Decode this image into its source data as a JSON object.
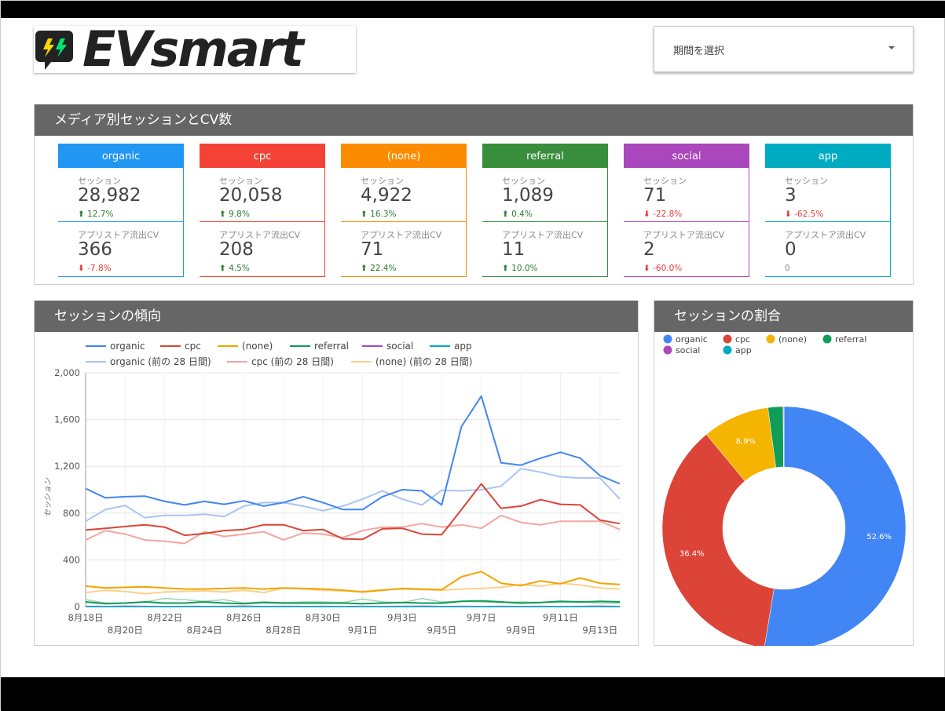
{
  "header": {
    "brand": "EVsmart",
    "period_placeholder": "期間を選択"
  },
  "media_panel": {
    "title": "メディア別セッションとCV数"
  },
  "cards": [
    {
      "name": "organic",
      "color": "#2196f3",
      "session_label": "セッション",
      "sessions": "28,982",
      "session_change": "12.7%",
      "session_dir": "up",
      "cv_label": "アプリストア流出CV",
      "cv": "366",
      "cv_change": "-7.8%",
      "cv_dir": "down"
    },
    {
      "name": "cpc",
      "color": "#f44336",
      "session_label": "セッション",
      "sessions": "20,058",
      "session_change": "9.8%",
      "session_dir": "up",
      "cv_label": "アプリストア流出CV",
      "cv": "208",
      "cv_change": "4.5%",
      "cv_dir": "up"
    },
    {
      "name": "(none)",
      "color": "#fb8c00",
      "session_label": "セッション",
      "sessions": "4,922",
      "session_change": "16.3%",
      "session_dir": "up",
      "cv_label": "アプリストア流出CV",
      "cv": "71",
      "cv_change": "22.4%",
      "cv_dir": "up"
    },
    {
      "name": "referral",
      "color": "#388e3c",
      "session_label": "セッション",
      "sessions": "1,089",
      "session_change": "0.4%",
      "session_dir": "up",
      "cv_label": "アプリストア流出CV",
      "cv": "11",
      "cv_change": "10.0%",
      "cv_dir": "up"
    },
    {
      "name": "social",
      "color": "#ab47bc",
      "session_label": "セッション",
      "sessions": "71",
      "session_change": "-22.8%",
      "session_dir": "down",
      "cv_label": "アプリストア流出CV",
      "cv": "2",
      "cv_change": "-60.0%",
      "cv_dir": "down"
    },
    {
      "name": "app",
      "color": "#00acc1",
      "session_label": "セッション",
      "sessions": "3",
      "session_change": "-62.5%",
      "session_dir": "down",
      "cv_label": "アプリストア流出CV",
      "cv": "0",
      "cv_change": "0",
      "cv_dir": "flat"
    }
  ],
  "trend_panel": {
    "title": "セッションの傾向"
  },
  "share_panel": {
    "title": "セッションの割合"
  },
  "colors": {
    "organic": "#4285f4",
    "cpc": "#db4437",
    "none": "#f4a300",
    "referral": "#0f9d58",
    "social": "#ab47bc",
    "app": "#00acc1"
  },
  "chart_data": [
    {
      "type": "line",
      "title": "セッションの傾向",
      "ylabel": "セッション",
      "ylim": [
        0,
        2000
      ],
      "yticks": [
        "0",
        "400",
        "800",
        "1,200",
        "1,600",
        "2,000"
      ],
      "x": [
        "8月18日",
        "8月19日",
        "8月20日",
        "8月21日",
        "8月22日",
        "8月23日",
        "8月24日",
        "8月25日",
        "8月26日",
        "8月27日",
        "8月28日",
        "8月29日",
        "8月30日",
        "8月31日",
        "9月1日",
        "9月2日",
        "9月3日",
        "9月4日",
        "9月5日",
        "9月6日",
        "9月7日",
        "9月8日",
        "9月9日",
        "9月10日",
        "9月11日",
        "9月12日",
        "9月13日",
        "9月14日"
      ],
      "xtick_labels_row1": [
        "8月18日",
        "8月22日",
        "8月26日",
        "8月30日",
        "9月3日",
        "9月7日",
        "9月11日"
      ],
      "xtick_labels_row2": [
        "8月20日",
        "8月24日",
        "8月28日",
        "9月1日",
        "9月5日",
        "9月9日",
        "9月13日"
      ],
      "series": [
        {
          "name": "organic",
          "color": "#4285f4",
          "width": 2,
          "values": [
            1010,
            930,
            940,
            945,
            900,
            870,
            900,
            875,
            905,
            860,
            890,
            940,
            890,
            830,
            830,
            940,
            1000,
            990,
            870,
            1540,
            1800,
            1230,
            1210,
            1270,
            1320,
            1270,
            1120,
            1050
          ]
        },
        {
          "name": "cpc",
          "color": "#db4437",
          "width": 2,
          "values": [
            655,
            670,
            685,
            700,
            680,
            610,
            625,
            650,
            660,
            700,
            700,
            650,
            660,
            580,
            575,
            665,
            670,
            620,
            615,
            830,
            1050,
            840,
            860,
            915,
            875,
            870,
            740,
            710
          ]
        },
        {
          "name": "(none)",
          "color": "#f4a300",
          "width": 2,
          "values": [
            175,
            160,
            165,
            170,
            160,
            150,
            150,
            155,
            160,
            150,
            160,
            155,
            150,
            140,
            125,
            140,
            155,
            150,
            145,
            255,
            300,
            200,
            180,
            220,
            195,
            245,
            200,
            190
          ]
        },
        {
          "name": "referral",
          "color": "#0f9d58",
          "width": 2,
          "values": [
            40,
            25,
            30,
            40,
            30,
            30,
            40,
            30,
            25,
            35,
            30,
            30,
            30,
            30,
            25,
            30,
            35,
            30,
            30,
            45,
            50,
            40,
            30,
            35,
            45,
            40,
            45,
            40
          ]
        },
        {
          "name": "social",
          "color": "#ab47bc",
          "width": 1.5,
          "values": [
            3,
            2,
            4,
            3,
            2,
            3,
            2,
            3,
            4,
            2,
            3,
            2,
            3,
            2,
            3,
            2,
            3,
            4,
            2,
            3,
            2,
            3,
            2,
            3,
            2,
            3,
            4,
            2
          ]
        },
        {
          "name": "app",
          "color": "#00acc1",
          "width": 1.5,
          "values": [
            0,
            0,
            0,
            0,
            0,
            0,
            0,
            0,
            0,
            0,
            0,
            0,
            0,
            0,
            0,
            0,
            0,
            0,
            0,
            0,
            0,
            0,
            0,
            0,
            0,
            0,
            0,
            0
          ]
        },
        {
          "name": "organic (前の 28 日間)",
          "color": "#a9c4f5",
          "width": 2,
          "values": [
            730,
            830,
            865,
            760,
            780,
            780,
            790,
            770,
            860,
            890,
            890,
            860,
            820,
            860,
            920,
            990,
            920,
            870,
            995,
            990,
            1000,
            1030,
            1180,
            1150,
            1110,
            1100,
            1100,
            920
          ]
        },
        {
          "name": "cpc (前の 28 日間)",
          "color": "#f4a5a0",
          "width": 2,
          "values": [
            570,
            650,
            620,
            570,
            560,
            540,
            640,
            600,
            620,
            640,
            570,
            630,
            620,
            590,
            650,
            680,
            680,
            710,
            680,
            700,
            670,
            780,
            720,
            700,
            730,
            730,
            730,
            660
          ]
        },
        {
          "name": "(none) (前の 28 日間)",
          "color": "#fcd18a",
          "width": 2,
          "values": [
            120,
            140,
            130,
            110,
            125,
            130,
            135,
            125,
            140,
            120,
            160,
            150,
            140,
            135,
            130,
            145,
            150,
            145,
            140,
            150,
            155,
            165,
            190,
            175,
            200,
            185,
            160,
            150
          ]
        },
        {
          "name": "referral (前の 28 日間)",
          "color": "#9bd3b3",
          "width": 1.5,
          "values": [
            60,
            30,
            30,
            40,
            70,
            60,
            45,
            60,
            30,
            40,
            35,
            40,
            40,
            35,
            65,
            40,
            35,
            70,
            40,
            45,
            40,
            35,
            40,
            35,
            35,
            40,
            30,
            30
          ]
        }
      ],
      "legend_row1": [
        "organic",
        "cpc",
        "(none)",
        "referral",
        "social",
        "app"
      ],
      "legend_row2": [
        "organic (前の 28 日間)",
        "cpc (前の 28 日間)",
        "(none) (前の 28 日間)"
      ]
    },
    {
      "type": "pie",
      "title": "セッションの割合",
      "legend": [
        "organic",
        "cpc",
        "(none)",
        "referral",
        "social",
        "app"
      ],
      "labels": [
        "organic",
        "cpc",
        "(none)",
        "referral",
        "social",
        "app"
      ],
      "values": [
        52.6,
        36.4,
        8.9,
        2.0,
        0.1,
        0.01
      ],
      "value_labels": [
        "52.6%",
        "36.4%",
        "8.9%",
        "",
        "",
        ""
      ],
      "colors": [
        "#4285f4",
        "#db4437",
        "#f4b400",
        "#0f9d58",
        "#ab47bc",
        "#00acc1"
      ]
    }
  ]
}
